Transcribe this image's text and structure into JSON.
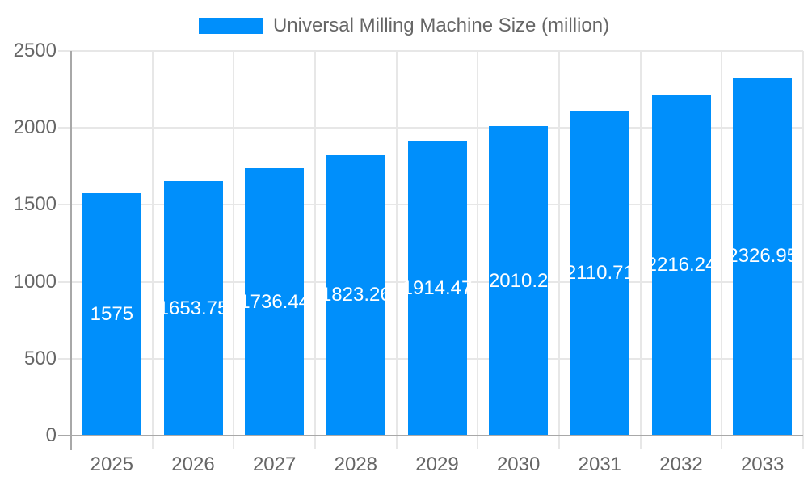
{
  "legend": {
    "label": "Universal Milling Machine Size (million)",
    "position": "top"
  },
  "chart_data": {
    "type": "bar",
    "title": "Universal Milling Machine Size (million)",
    "categories": [
      "2025",
      "2026",
      "2027",
      "2028",
      "2029",
      "2030",
      "2031",
      "2032",
      "2033"
    ],
    "values": [
      1575,
      1653.75,
      1736.44,
      1823.26,
      1914.47,
      2010.2,
      2110.71,
      2216.24,
      2326.95
    ],
    "value_labels": [
      "1575",
      "1653.75",
      "1736.44",
      "1823.26",
      "1914.47",
      "2010.2",
      "2110.71",
      "2216.24",
      "2326.95"
    ],
    "xlabel": "",
    "ylabel": "",
    "ylim": [
      0,
      2500
    ],
    "yticks": [
      0,
      500,
      1000,
      1500,
      2000,
      2500
    ],
    "grid": true,
    "legend_position": "top",
    "colors": {
      "bar": "#008ffb",
      "value_label": "#ffffff",
      "tick_label": "#666666",
      "legend_text": "#666666",
      "gridline": "#e7e7e7",
      "axis_line": "#a8a8a8",
      "background": "#ffffff"
    }
  }
}
